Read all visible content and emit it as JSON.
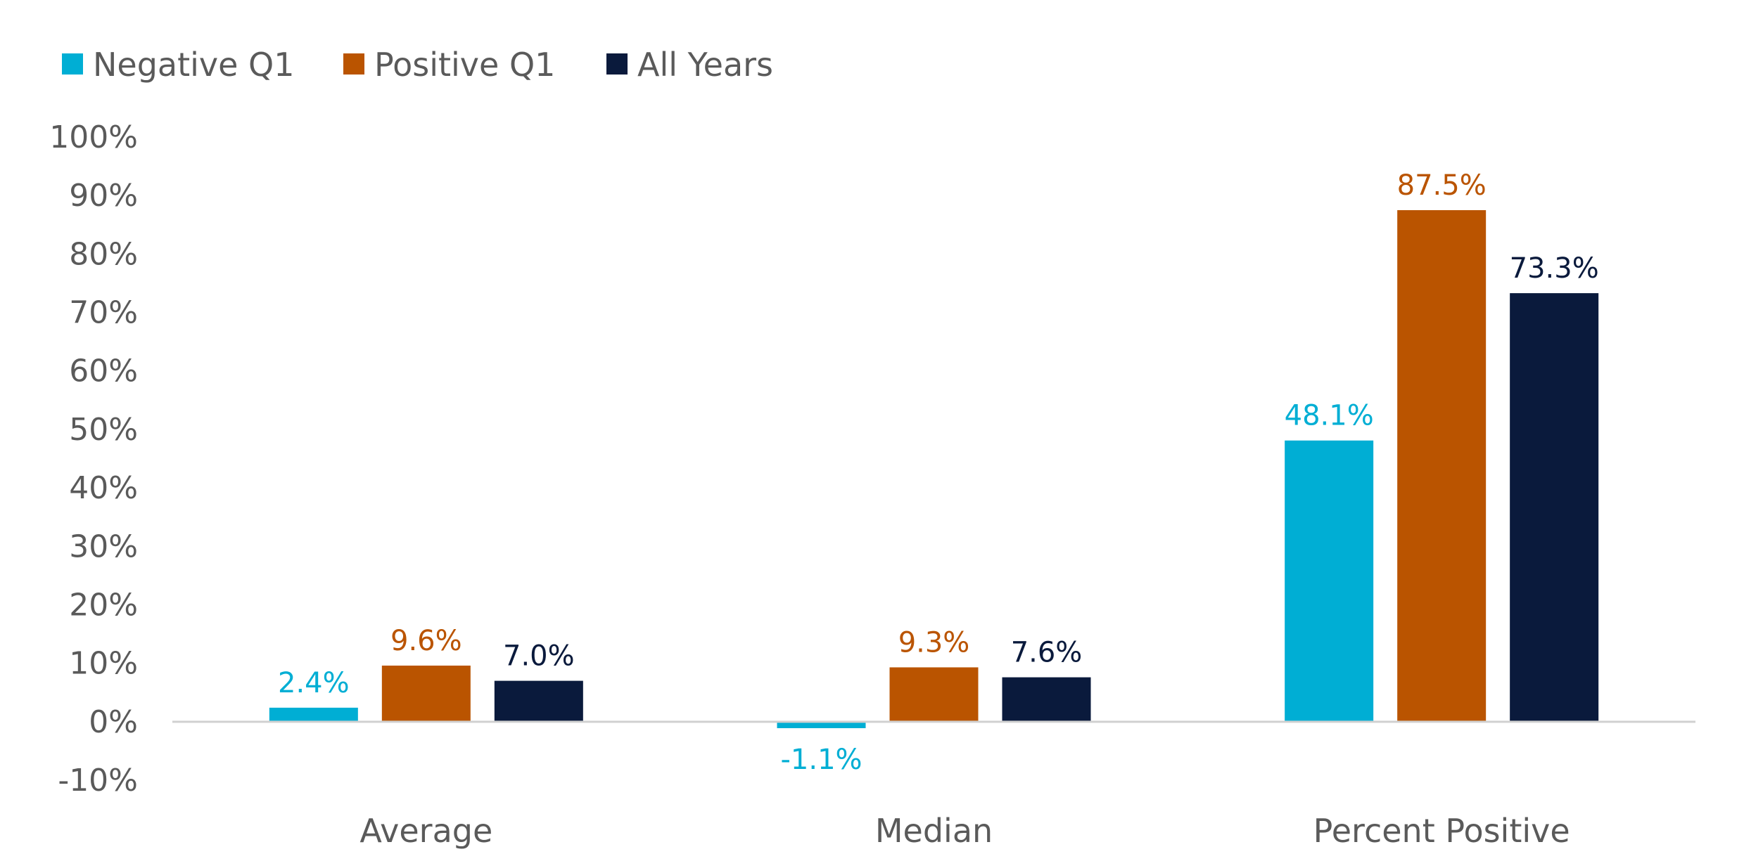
{
  "chart_data": {
    "type": "bar",
    "categories": [
      "Average",
      "Median",
      "Percent Positive"
    ],
    "series": [
      {
        "name": "Negative Q1",
        "color": "#00AED4",
        "values": [
          2.4,
          -1.1,
          48.1
        ],
        "labels": [
          "2.4%",
          "-1.1%",
          "48.1%"
        ]
      },
      {
        "name": "Positive Q1",
        "color": "#BA5400",
        "values": [
          9.6,
          9.3,
          87.5
        ],
        "labels": [
          "9.6%",
          "9.3%",
          "87.5%"
        ]
      },
      {
        "name": "All Years",
        "color": "#0A1A3C",
        "values": [
          7.0,
          7.6,
          73.3
        ],
        "labels": [
          "7.0%",
          "7.6%",
          "73.3%"
        ]
      }
    ],
    "title": "",
    "xlabel": "",
    "ylabel": "",
    "ylim": [
      -10,
      100
    ],
    "yticks": [
      100,
      90,
      80,
      70,
      60,
      50,
      40,
      30,
      20,
      10,
      0,
      -10
    ],
    "ytick_labels": [
      "100%",
      "90%",
      "80%",
      "70%",
      "60%",
      "50%",
      "40%",
      "30%",
      "20%",
      "10%",
      "0%",
      "-10%"
    ],
    "grid": false,
    "legend_position": "top-left",
    "axis_color": "#D0D0D0",
    "text_color": "#5A5A5A"
  }
}
